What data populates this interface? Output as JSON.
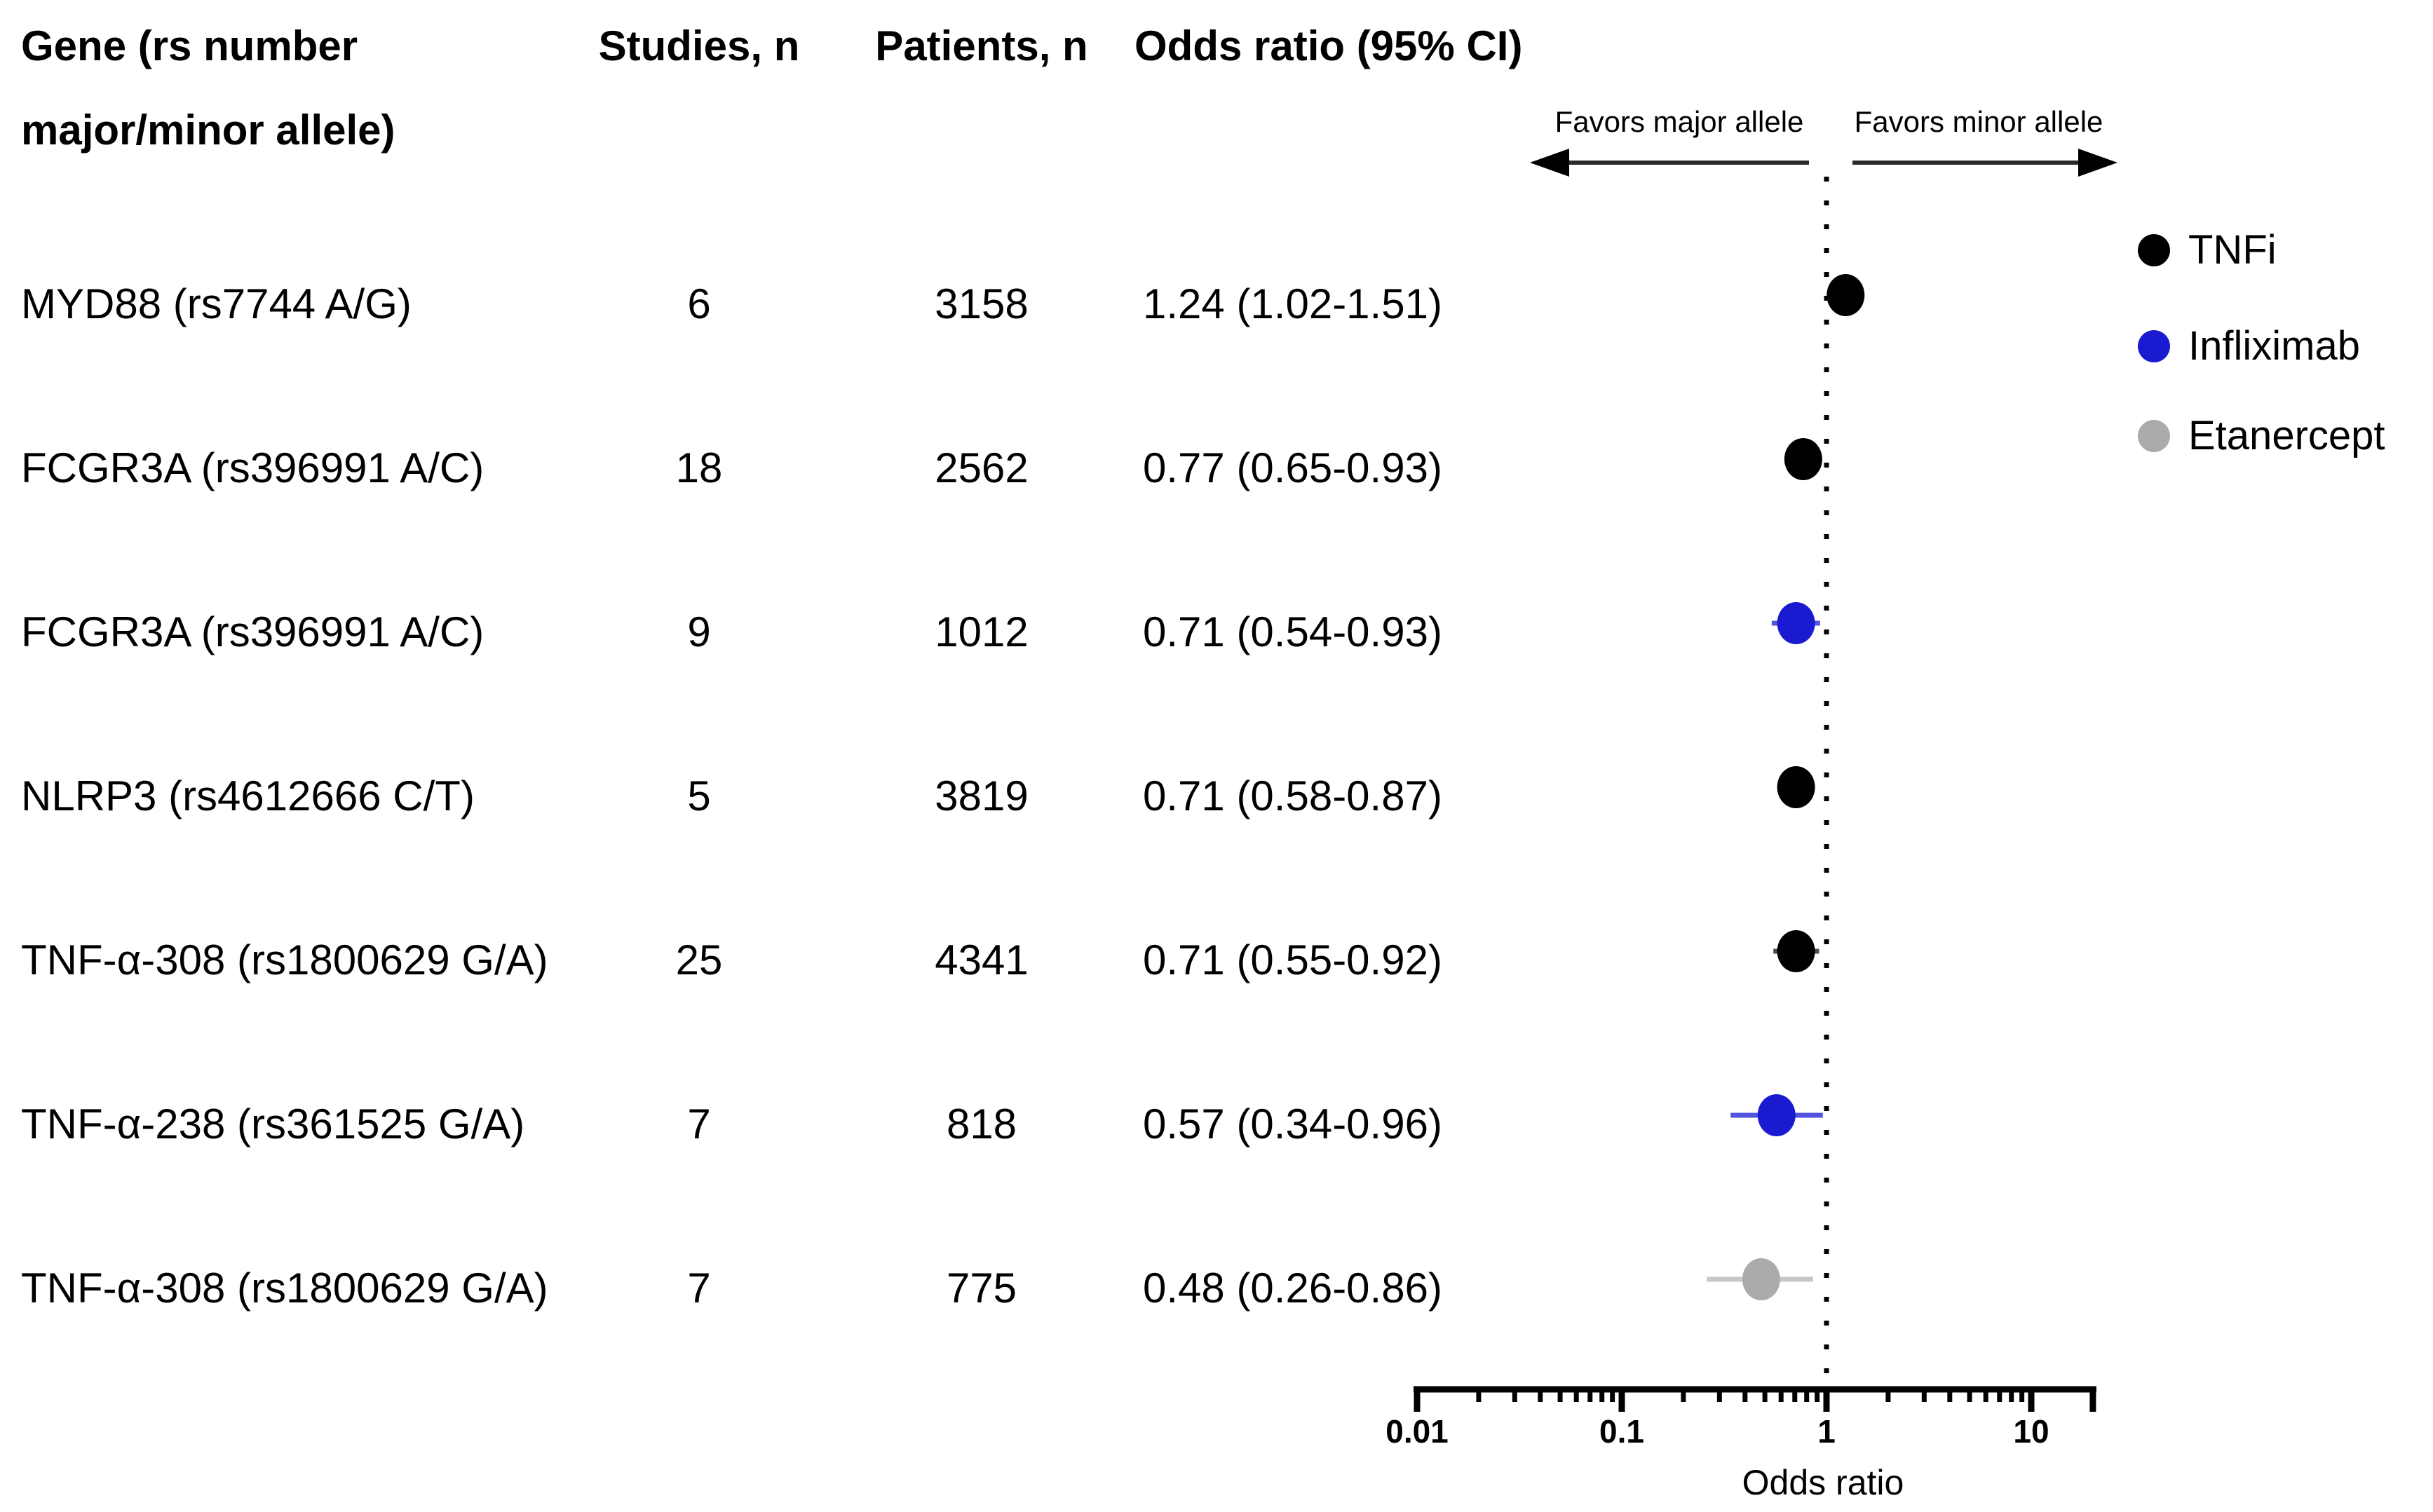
{
  "figure": {
    "columns": {
      "gene_header_line1": "Gene (rs number",
      "gene_header_line2": "major/minor allele)",
      "studies": "Studies, n",
      "patients": "Patients, n",
      "odds_ratio": "Odds ratio (95% CI)"
    },
    "direction_labels": {
      "left": "Favors major allele",
      "right": "Favors minor allele"
    }
  },
  "chart_data": {
    "type": "scatter",
    "subtype": "forest-plot",
    "title": "",
    "xlabel": "Odds ratio",
    "x_scale": "log",
    "xlim": [
      0.01,
      20
    ],
    "reference_line": 1,
    "grid": false,
    "legend_position": "right",
    "x_ticks": [
      {
        "value": 0.01,
        "label": "0.01"
      },
      {
        "value": 0.1,
        "label": "0.1"
      },
      {
        "value": 1,
        "label": "1"
      },
      {
        "value": 10,
        "label": "10"
      }
    ],
    "rows": [
      {
        "gene": "MYD88 (rs7744 A/G)",
        "studies": "6",
        "patients": "3158",
        "or_text": "1.24 (1.02-1.51)",
        "or": 1.24,
        "ci_low": 1.02,
        "ci_high": 1.51,
        "group": "TNFi"
      },
      {
        "gene": "FCGR3A (rs396991 A/C)",
        "studies": "18",
        "patients": "2562",
        "or_text": "0.77 (0.65-0.93)",
        "or": 0.77,
        "ci_low": 0.65,
        "ci_high": 0.93,
        "group": "TNFi"
      },
      {
        "gene": "FCGR3A (rs396991 A/C)",
        "studies": "9",
        "patients": "1012",
        "or_text": "0.71 (0.54-0.93)",
        "or": 0.71,
        "ci_low": 0.54,
        "ci_high": 0.93,
        "group": "Infliximab"
      },
      {
        "gene": "NLRP3 (rs4612666 C/T)",
        "studies": "5",
        "patients": "3819",
        "or_text": "0.71 (0.58-0.87)",
        "or": 0.71,
        "ci_low": 0.58,
        "ci_high": 0.87,
        "group": "TNFi"
      },
      {
        "gene": "TNF-α-308 (rs1800629 G/A)",
        "studies": "25",
        "patients": "4341",
        "or_text": "0.71 (0.55-0.92)",
        "or": 0.71,
        "ci_low": 0.55,
        "ci_high": 0.92,
        "group": "TNFi"
      },
      {
        "gene": "TNF-α-238 (rs361525 G/A)",
        "studies": "7",
        "patients": "818",
        "or_text": "0.57 (0.34-0.96)",
        "or": 0.57,
        "ci_low": 0.34,
        "ci_high": 0.96,
        "group": "Infliximab"
      },
      {
        "gene": "TNF-α-308 (rs1800629 G/A)",
        "studies": "7",
        "patients": "775",
        "or_text": "0.48 (0.26-0.86)",
        "or": 0.48,
        "ci_low": 0.26,
        "ci_high": 0.86,
        "group": "Etanercept"
      }
    ],
    "groups": {
      "TNFi": {
        "dot": "#000000",
        "ci": "#4d4d4d"
      },
      "Infliximab": {
        "dot": "#1a1ad1",
        "ci": "#5353dd"
      },
      "Etanercept": {
        "dot": "#ababab",
        "ci": "#c7c7c7"
      }
    },
    "legend": [
      {
        "label": "TNFi",
        "color": "#000000"
      },
      {
        "label": "Infliximab",
        "color": "#1a1ad1"
      },
      {
        "label": "Etanercept",
        "color": "#ababab"
      }
    ]
  }
}
